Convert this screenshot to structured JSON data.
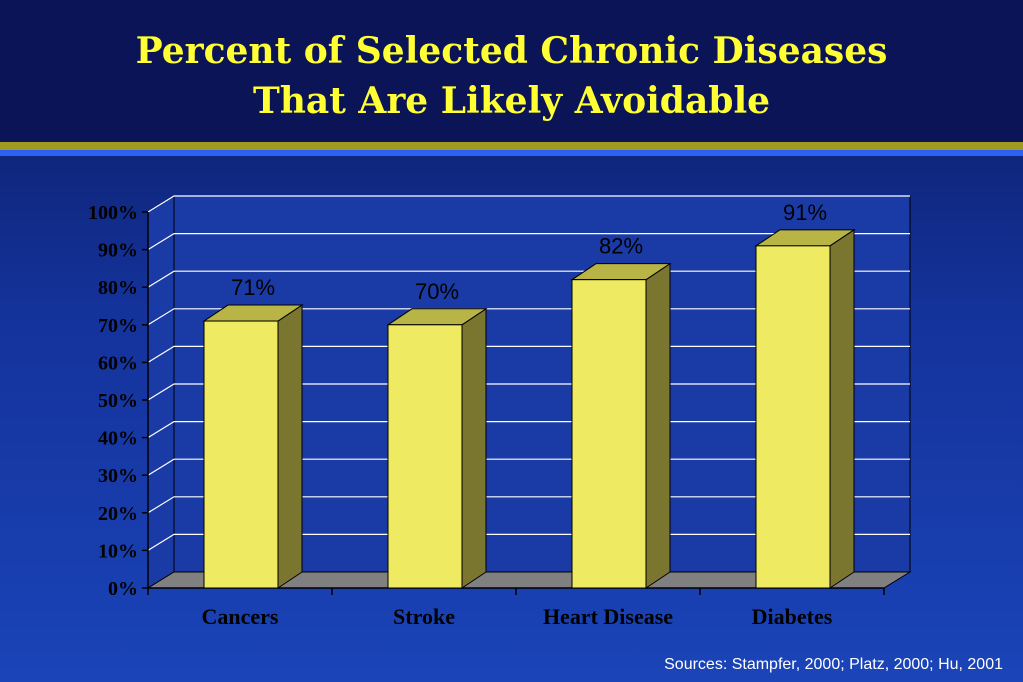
{
  "slide": {
    "title_line1": "Percent of Selected Chronic Diseases",
    "title_line2": "That Are Likely Avoidable",
    "source": "Sources:  Stampfer, 2000; Platz, 2000; Hu, 2001"
  },
  "colors": {
    "bar_front": "#eeea62",
    "bar_top": "#b8b446",
    "bar_side": "#7a7630",
    "plot_bg": "#1a3aa6",
    "floor": "#808080",
    "title": "#ffff33"
  },
  "chart_data": {
    "type": "bar",
    "title": "Percent of Selected Chronic Diseases That Are Likely Avoidable",
    "categories": [
      "Cancers",
      "Stroke",
      "Heart Disease",
      "Diabetes"
    ],
    "values": [
      71,
      70,
      82,
      91
    ],
    "value_labels": [
      "71%",
      "70%",
      "82%",
      "91%"
    ],
    "xlabel": "",
    "ylabel": "",
    "ylim": [
      0,
      100
    ],
    "ytick_labels": [
      "0%",
      "10%",
      "20%",
      "30%",
      "40%",
      "50%",
      "60%",
      "70%",
      "80%",
      "90%",
      "100%"
    ],
    "grid": true,
    "style": "3d",
    "legend": "none"
  }
}
